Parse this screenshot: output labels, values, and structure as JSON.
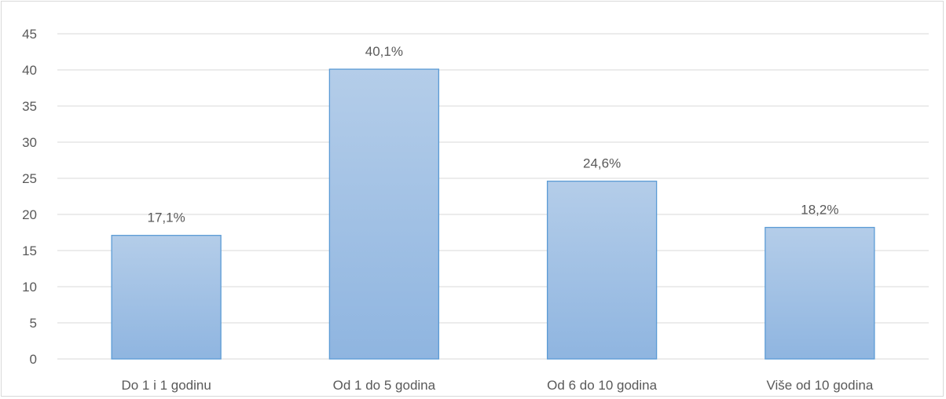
{
  "chart_data": {
    "type": "bar",
    "categories": [
      "Do 1 i 1 godinu",
      "Od 1 do 5 godina",
      "Od 6 do 10 godina",
      "Više od 10 godina"
    ],
    "values": [
      17.1,
      40.1,
      24.6,
      18.2
    ],
    "data_labels": [
      "17,1%",
      "40,1%",
      "24,6%",
      "18,2%"
    ],
    "ylim": [
      0,
      45
    ],
    "yticks": [
      "0",
      "5",
      "10",
      "15",
      "20",
      "25",
      "30",
      "35",
      "40",
      "45"
    ],
    "ytick_values": [
      0,
      5,
      10,
      15,
      20,
      25,
      30,
      35,
      40,
      45
    ],
    "grid": true,
    "legend": "none",
    "colors": {
      "bar_top": "#b4cde9",
      "bar_bottom": "#8fb5e0",
      "bar_border": "#5b9bd5",
      "grid": "#d9d9d9",
      "text": "#595959"
    }
  }
}
